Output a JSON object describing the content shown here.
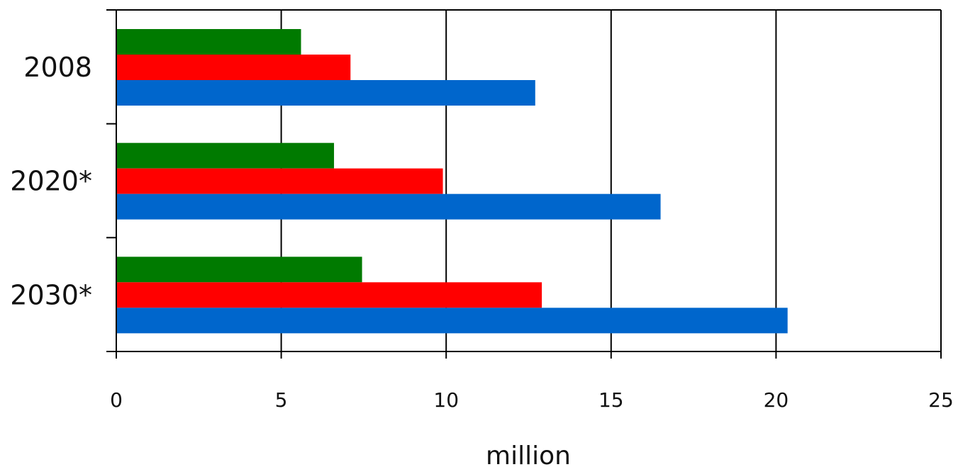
{
  "chart_data": {
    "type": "bar",
    "orientation": "horizontal",
    "categories": [
      "2008",
      "2020*",
      "2030*"
    ],
    "series": [
      {
        "values": [
          5.6,
          6.6,
          7.45
        ],
        "color": "#007A00"
      },
      {
        "values": [
          7.1,
          9.9,
          12.9
        ],
        "color": "#FF0000"
      },
      {
        "values": [
          12.7,
          16.5,
          20.35
        ],
        "color": "#0066CC"
      }
    ],
    "xlabel": "million",
    "ylabel": "",
    "title": "",
    "xlim": [
      0,
      25
    ],
    "xticks": [
      "0",
      "5",
      "10",
      "15",
      "20",
      "25"
    ],
    "grid": "vertical",
    "legend": "none"
  }
}
